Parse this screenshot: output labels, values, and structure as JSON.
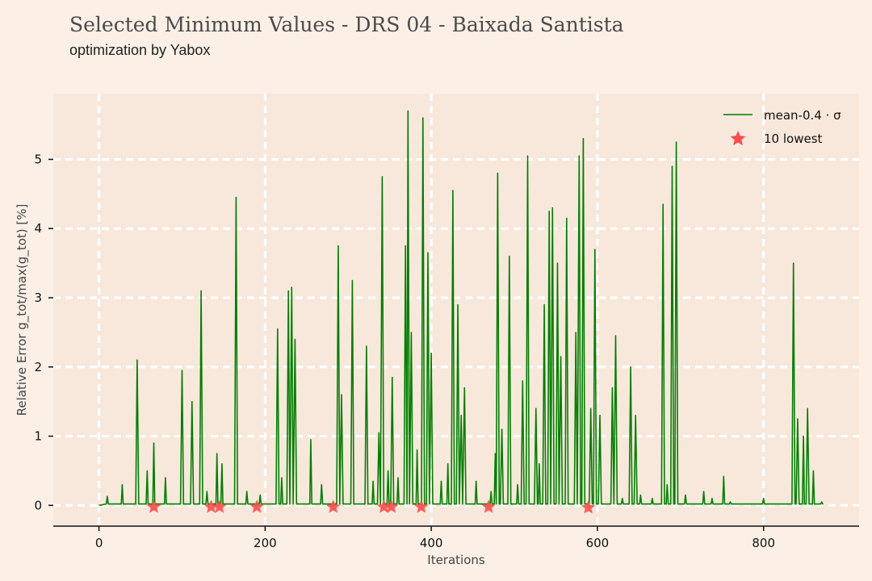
{
  "header": {
    "title": "Selected Minimum Values - DRS 04 - Baixada Santista",
    "subtitle": "optimization by Yabox"
  },
  "colors": {
    "background": "#fcf0e6",
    "plot_background": "#f8e8dc",
    "grid": "#ffffff",
    "line": "#008000",
    "marker": "#ff4a4a"
  },
  "chart_data": {
    "type": "line",
    "xlabel": "Iterations",
    "ylabel": "Relative Error g_tot/max(g_tot) [%]",
    "xlim": [
      -55,
      915
    ],
    "ylim": [
      -0.3,
      5.95
    ],
    "xticks": [
      0,
      200,
      400,
      600,
      800
    ],
    "yticks": [
      0,
      1,
      2,
      3,
      4,
      5
    ],
    "grid": true,
    "legend_position": "top-right",
    "series": [
      {
        "name": "mean-0.4 · σ",
        "kind": "line",
        "peaks": [
          [
            10,
            0.13
          ],
          [
            28,
            0.3
          ],
          [
            46,
            2.1
          ],
          [
            58,
            0.5
          ],
          [
            66,
            0.9
          ],
          [
            80,
            0.4
          ],
          [
            100,
            1.95
          ],
          [
            112,
            1.5
          ],
          [
            123,
            3.1
          ],
          [
            130,
            0.2
          ],
          [
            142,
            0.75
          ],
          [
            148,
            0.6
          ],
          [
            165,
            4.45
          ],
          [
            178,
            0.2
          ],
          [
            194,
            0.15
          ],
          [
            215,
            2.55
          ],
          [
            220,
            0.4
          ],
          [
            228,
            3.1
          ],
          [
            232,
            3.15
          ],
          [
            236,
            2.4
          ],
          [
            255,
            0.95
          ],
          [
            268,
            0.3
          ],
          [
            288,
            3.75
          ],
          [
            292,
            1.6
          ],
          [
            305,
            3.25
          ],
          [
            322,
            2.3
          ],
          [
            330,
            0.35
          ],
          [
            337,
            1.05
          ],
          [
            341,
            4.75
          ],
          [
            348,
            0.5
          ],
          [
            353,
            1.85
          ],
          [
            360,
            0.4
          ],
          [
            369,
            3.75
          ],
          [
            372,
            5.7
          ],
          [
            376,
            2.5
          ],
          [
            383,
            0.8
          ],
          [
            390,
            5.6
          ],
          [
            396,
            3.65
          ],
          [
            400,
            2.2
          ],
          [
            412,
            0.35
          ],
          [
            420,
            0.6
          ],
          [
            426,
            4.55
          ],
          [
            432,
            2.9
          ],
          [
            436,
            1.3
          ],
          [
            440,
            1.7
          ],
          [
            454,
            0.35
          ],
          [
            472,
            0.2
          ],
          [
            477,
            0.75
          ],
          [
            480,
            4.8
          ],
          [
            485,
            1.1
          ],
          [
            494,
            3.6
          ],
          [
            504,
            0.3
          ],
          [
            510,
            1.8
          ],
          [
            516,
            5.05
          ],
          [
            526,
            1.4
          ],
          [
            530,
            0.6
          ],
          [
            536,
            2.9
          ],
          [
            542,
            4.25
          ],
          [
            546,
            4.3
          ],
          [
            552,
            3.5
          ],
          [
            556,
            2.15
          ],
          [
            563,
            4.15
          ],
          [
            574,
            2.5
          ],
          [
            578,
            5.05
          ],
          [
            583,
            5.3
          ],
          [
            592,
            1.4
          ],
          [
            597,
            3.7
          ],
          [
            603,
            1.3
          ],
          [
            618,
            1.7
          ],
          [
            622,
            2.45
          ],
          [
            630,
            0.1
          ],
          [
            640,
            2.0
          ],
          [
            646,
            1.3
          ],
          [
            652,
            0.15
          ],
          [
            666,
            0.1
          ],
          [
            679,
            4.35
          ],
          [
            684,
            0.3
          ],
          [
            690,
            4.9
          ],
          [
            695,
            5.25
          ],
          [
            706,
            0.15
          ],
          [
            728,
            0.2
          ],
          [
            738,
            0.1
          ],
          [
            752,
            0.42
          ],
          [
            760,
            0.05
          ],
          [
            800,
            0.1
          ],
          [
            836,
            3.5
          ],
          [
            841,
            1.25
          ],
          [
            848,
            1.0
          ],
          [
            853,
            1.4
          ],
          [
            860,
            0.5
          ],
          [
            870,
            0.05
          ]
        ]
      },
      {
        "name": "10 lowest",
        "kind": "scatter",
        "x": [
          66,
          135,
          145,
          190,
          282,
          343,
          352,
          388,
          469,
          589
        ],
        "y": [
          0,
          0,
          0,
          0,
          0,
          0,
          0,
          0,
          0,
          -0.01
        ]
      }
    ]
  }
}
